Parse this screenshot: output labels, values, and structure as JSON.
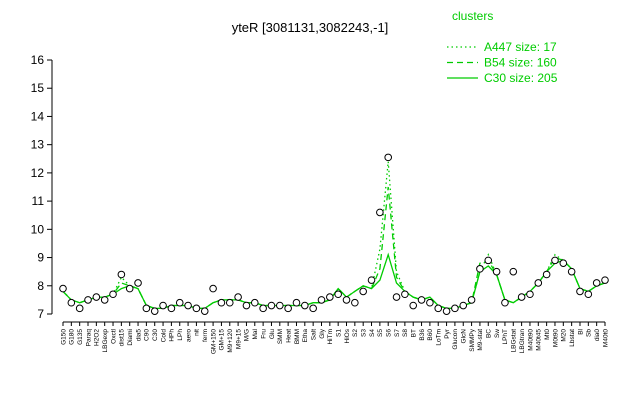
{
  "chart_data": {
    "type": "line",
    "title": "yteR [3081131,3082243,-1]",
    "legend_title": "clusters",
    "categories": [
      "G150",
      "G180",
      "G135",
      "Paraq",
      "H2O2",
      "LBGexp",
      "Oxctl",
      "dist15",
      "Diami",
      "dia5",
      "C90",
      "C30",
      "Cold",
      "HPh",
      "LPh",
      "aero",
      "nit",
      "ferm",
      "GM+150",
      "GM+15",
      "M9+120",
      "M9+15",
      "M/G",
      "Mal",
      "Fru",
      "Glu",
      "SMM",
      "Heat",
      "BMM",
      "Etha",
      "Salt",
      "Gly",
      "HiTm",
      "S1",
      "HiOs",
      "S2",
      "S3",
      "S4",
      "S5",
      "S6",
      "S7",
      "S8",
      "BT",
      "B36",
      "B60",
      "LoTm",
      "Pyr",
      "Glucon",
      "GlcN",
      "SMMPy",
      "M9-stat",
      "BC",
      "Sw",
      "LPhT",
      "LBGstat",
      "LBGtran",
      "M40t90",
      "M40t45",
      "Mt0",
      "M0t90",
      "M20",
      "Lbstat",
      "Bl",
      "Sb",
      "dia0",
      "M40t0"
    ],
    "series": [
      {
        "name": "A447 size: 17",
        "color": "#00cc00",
        "dash": "dotted",
        "values": [
          7.8,
          7.5,
          7.4,
          7.5,
          7.6,
          7.6,
          7.7,
          8.3,
          8.0,
          7.9,
          7.3,
          7.2,
          7.2,
          7.3,
          7.3,
          7.3,
          7.2,
          7.2,
          7.4,
          7.5,
          7.5,
          7.5,
          7.4,
          7.4,
          7.3,
          7.3,
          7.3,
          7.3,
          7.3,
          7.3,
          7.4,
          7.4,
          7.5,
          7.9,
          7.6,
          7.8,
          8.0,
          7.9,
          9.3,
          12.4,
          8.5,
          7.8,
          7.6,
          7.5,
          7.6,
          7.3,
          7.2,
          7.2,
          7.3,
          7.4,
          8.5,
          9.1,
          8.4,
          7.5,
          7.4,
          7.6,
          7.8,
          8.1,
          8.5,
          9.1,
          8.9,
          8.6,
          7.9,
          7.8,
          8.0,
          8.1
        ]
      },
      {
        "name": "B54 size: 160",
        "color": "#00cc00",
        "dash": "dashed",
        "values": [
          7.8,
          7.5,
          7.4,
          7.5,
          7.6,
          7.6,
          7.7,
          8.1,
          8.0,
          7.9,
          7.3,
          7.2,
          7.2,
          7.3,
          7.3,
          7.3,
          7.2,
          7.2,
          7.4,
          7.5,
          7.5,
          7.5,
          7.4,
          7.4,
          7.3,
          7.3,
          7.3,
          7.3,
          7.3,
          7.3,
          7.4,
          7.4,
          7.5,
          7.9,
          7.6,
          7.8,
          8.0,
          7.9,
          8.6,
          11.5,
          8.3,
          7.8,
          7.6,
          7.5,
          7.6,
          7.3,
          7.2,
          7.2,
          7.3,
          7.4,
          8.8,
          8.9,
          8.4,
          7.5,
          7.4,
          7.6,
          7.8,
          8.1,
          8.5,
          9.0,
          8.9,
          8.6,
          7.9,
          7.8,
          8.0,
          8.1
        ]
      },
      {
        "name": "C30 size: 205",
        "color": "#00cc00",
        "dash": "solid",
        "values": [
          7.8,
          7.5,
          7.4,
          7.5,
          7.6,
          7.6,
          7.7,
          7.9,
          8.0,
          7.9,
          7.3,
          7.2,
          7.2,
          7.3,
          7.3,
          7.3,
          7.2,
          7.2,
          7.4,
          7.5,
          7.5,
          7.5,
          7.4,
          7.4,
          7.3,
          7.3,
          7.3,
          7.3,
          7.3,
          7.3,
          7.4,
          7.4,
          7.5,
          7.9,
          7.6,
          7.8,
          8.0,
          7.9,
          8.2,
          9.1,
          8.1,
          7.8,
          7.6,
          7.5,
          7.6,
          7.3,
          7.2,
          7.2,
          7.3,
          7.4,
          8.5,
          8.7,
          8.4,
          7.5,
          7.4,
          7.6,
          7.8,
          8.1,
          8.5,
          8.8,
          8.9,
          8.6,
          7.9,
          7.8,
          8.0,
          8.1
        ]
      }
    ],
    "points": [
      7.9,
      7.4,
      7.2,
      7.5,
      7.6,
      7.5,
      7.7,
      8.4,
      7.9,
      8.1,
      7.2,
      7.1,
      7.3,
      7.2,
      7.4,
      7.3,
      7.2,
      7.1,
      7.9,
      7.4,
      7.4,
      7.6,
      7.3,
      7.4,
      7.2,
      7.3,
      7.3,
      7.2,
      7.4,
      7.3,
      7.2,
      7.5,
      7.6,
      7.7,
      7.5,
      7.4,
      7.8,
      8.2,
      10.6,
      12.55,
      7.6,
      7.7,
      7.3,
      7.5,
      7.4,
      7.2,
      7.1,
      7.2,
      7.3,
      7.5,
      8.6,
      8.9,
      8.5,
      7.4,
      8.5,
      7.6,
      7.7,
      8.1,
      8.4,
      8.9,
      8.8,
      8.5,
      7.8,
      7.7,
      8.1,
      8.2
    ],
    "point_color": "#000000",
    "ylim": [
      7,
      16
    ],
    "yticks": [
      7,
      8,
      9,
      10,
      11,
      12,
      13,
      14,
      15,
      16
    ]
  }
}
